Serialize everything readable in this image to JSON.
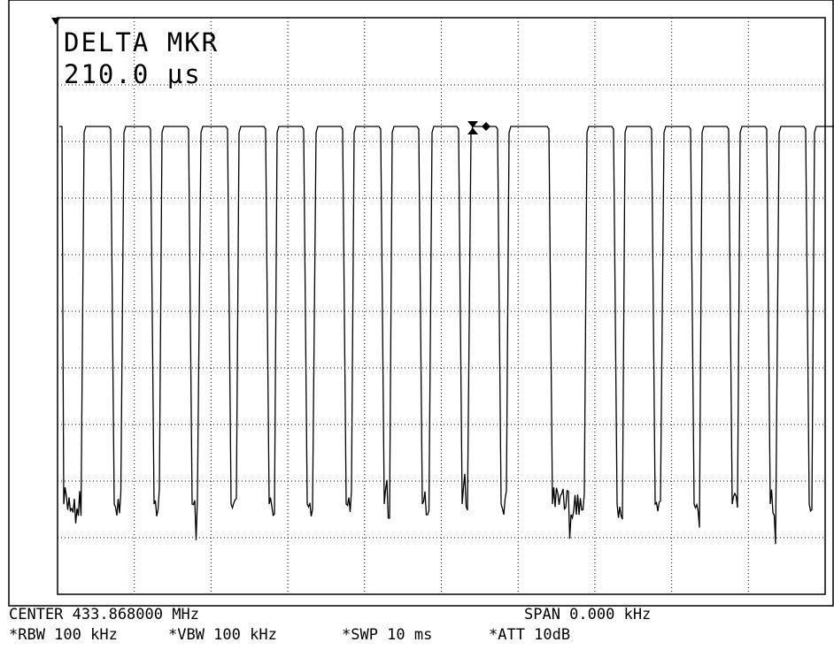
{
  "marker": {
    "title": "DELTA MKR",
    "value": "210.0 µs"
  },
  "footer": {
    "center": "CENTER 433.868000 MHz",
    "span": "SPAN 0.000 kHz",
    "rbw": "*RBW 100 kHz",
    "vbw": "*VBW 100 kHz",
    "swp": "*SWP 10 ms",
    "att": "*ATT 10dB"
  }
}
